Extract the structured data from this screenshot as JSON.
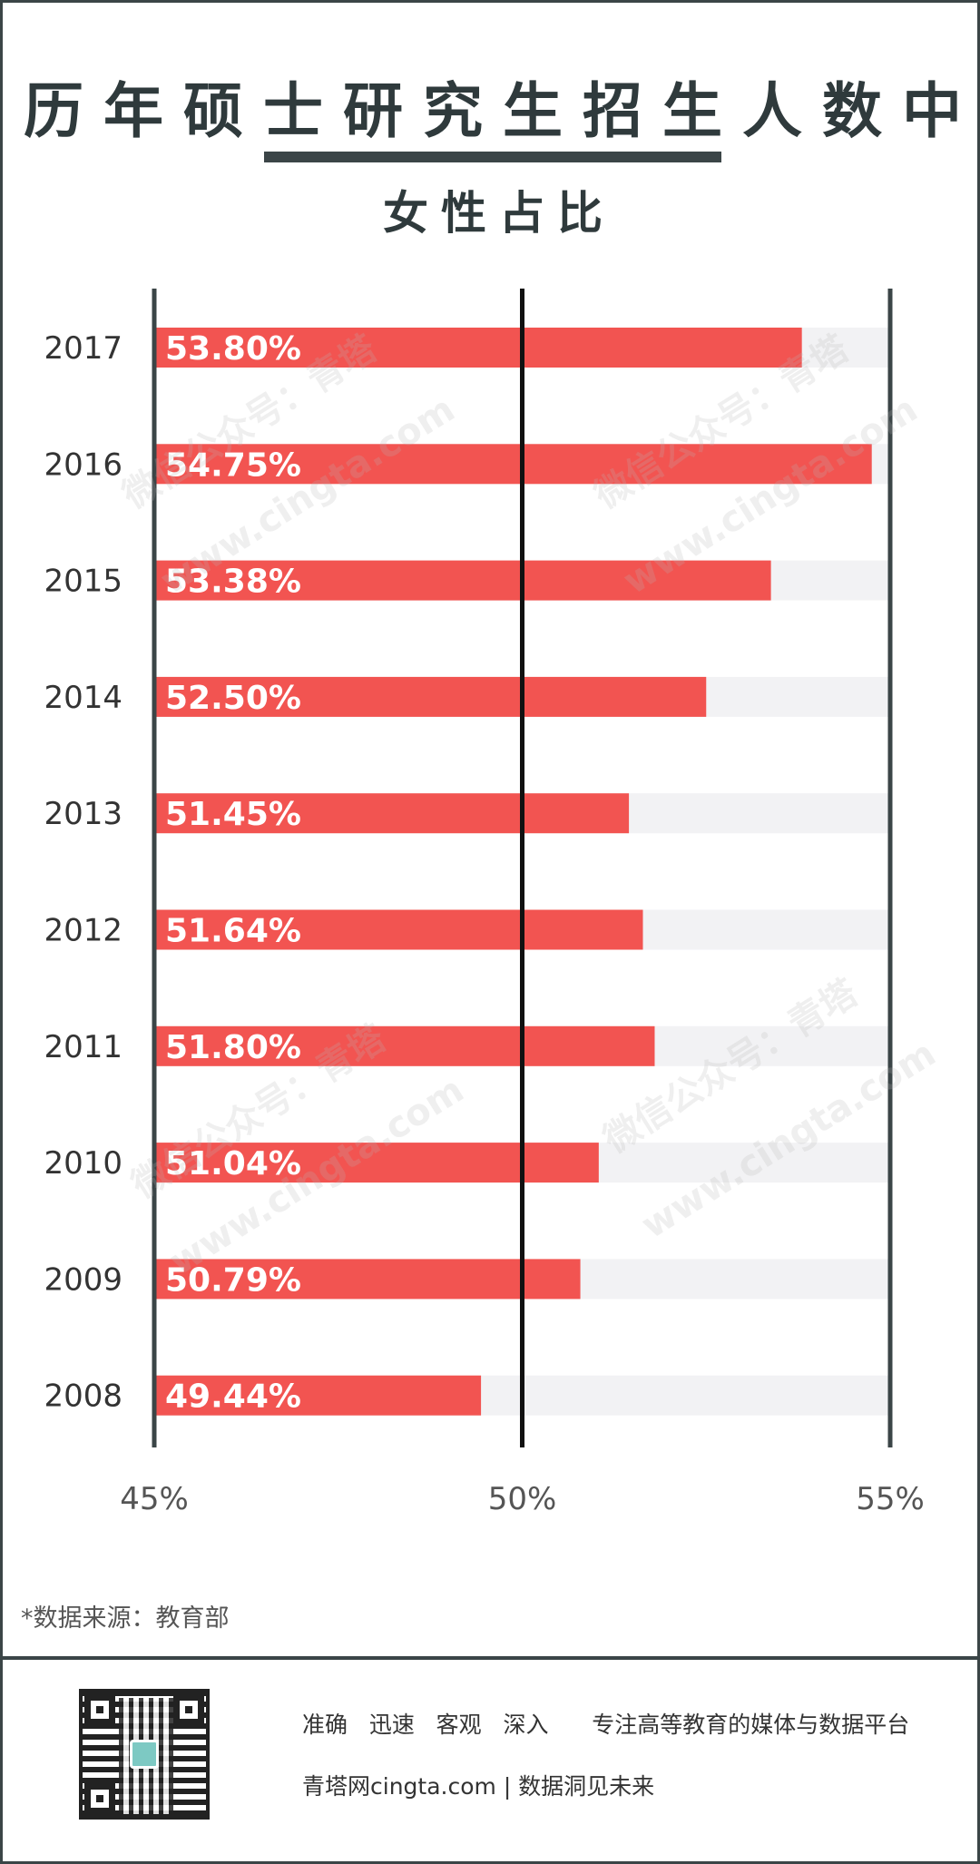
{
  "header": {
    "title": "历年硕士研究生招生人数中",
    "subtitle": "女性占比"
  },
  "chart_data": {
    "type": "bar",
    "orientation": "horizontal",
    "categories": [
      "2017",
      "2016",
      "2015",
      "2014",
      "2013",
      "2012",
      "2011",
      "2010",
      "2009",
      "2008"
    ],
    "values": [
      53.8,
      54.75,
      53.38,
      52.5,
      51.45,
      51.64,
      51.8,
      51.04,
      50.79,
      49.44
    ],
    "value_labels": [
      "53.80%",
      "54.75%",
      "53.38%",
      "52.50%",
      "51.45%",
      "51.64%",
      "51.80%",
      "51.04%",
      "50.79%",
      "49.44%"
    ],
    "xlim": [
      45,
      55
    ],
    "xticks": [
      "45%",
      "50%",
      "55%"
    ],
    "bar_color": "#f25451",
    "track_color": "#f2f2f4",
    "axis_color": "#111111"
  },
  "watermarks": [
    "微信公众号：青塔",
    "www.cingta.com"
  ],
  "source": "*数据来源：教育部",
  "footer": {
    "tagline1": "准确   迅速   客观   深入      专注高等教育的媒体与数据平台",
    "tagline2": "青塔网cingta.com | 数据洞见未来"
  }
}
